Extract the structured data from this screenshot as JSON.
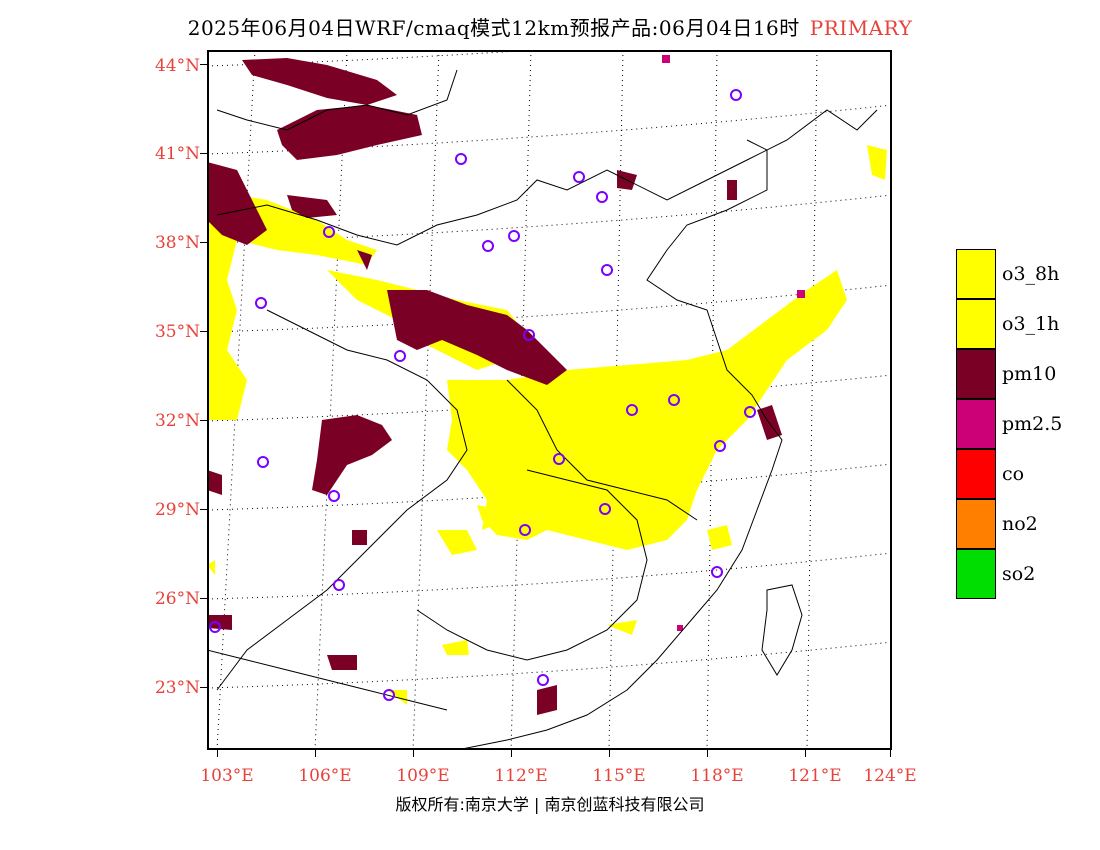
{
  "title": {
    "main": "2025年06月04日WRF/cmaq模式12km预报产品:06月04日16时",
    "tag": "PRIMARY"
  },
  "map": {
    "lat_labels": [
      "44°N",
      "41°N",
      "38°N",
      "35°N",
      "32°N",
      "29°N",
      "26°N",
      "23°N"
    ],
    "lon_labels": [
      "103°E",
      "106°E",
      "109°E",
      "112°E",
      "115°E",
      "118°E",
      "121°E",
      "124°E"
    ],
    "colors": {
      "o3_8h": "#ffff00",
      "o3_1h": "#ffff00",
      "pm10": "#7b0025",
      "pm25": "#cc0077",
      "co": "#ff0000",
      "no2": "#ff7f00",
      "so2": "#00dd00",
      "city_marker": "#7b00ff"
    }
  },
  "legend": [
    {
      "label": "o3_8h",
      "color": "#ffff00"
    },
    {
      "label": "o3_1h",
      "color": "#ffff00"
    },
    {
      "label": "pm10",
      "color": "#7b0025"
    },
    {
      "label": "pm2.5",
      "color": "#cc0077"
    },
    {
      "label": "co",
      "color": "#ff0000"
    },
    {
      "label": "no2",
      "color": "#ff7f00"
    },
    {
      "label": "so2",
      "color": "#00dd00"
    }
  ],
  "footer": {
    "copyright": "版权所有:南京大学 | 南京创蓝科技有限公司"
  }
}
